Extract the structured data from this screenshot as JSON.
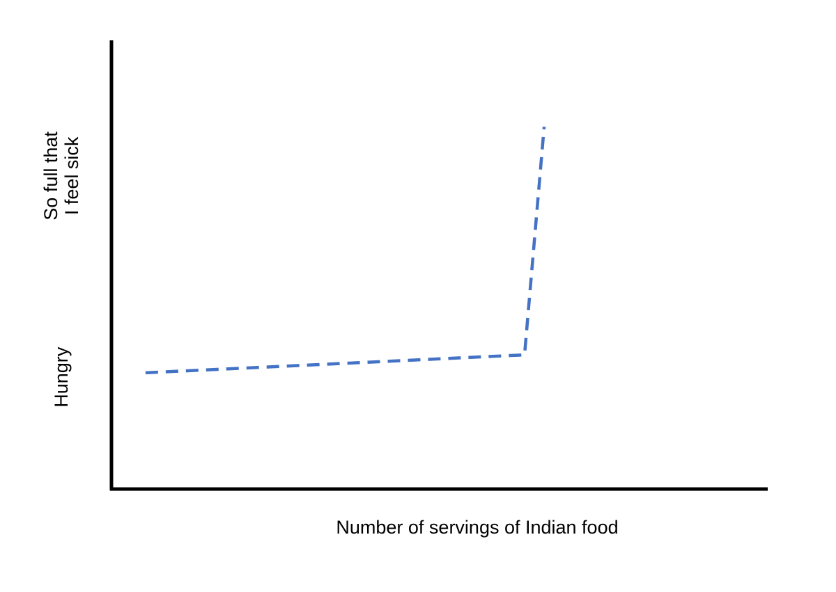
{
  "chart_data": {
    "type": "line",
    "xlabel": "Number of servings of Indian food",
    "x": [
      0.5,
      6.3,
      6.6
    ],
    "series": [
      {
        "color": "#4472c4",
        "values": [
          2.6,
          3.0,
          8.1
        ]
      }
    ],
    "xlim": [
      0,
      10
    ],
    "ylim": [
      0,
      10
    ],
    "yticks": [
      {
        "value": 2.5,
        "label": "Hungry"
      },
      {
        "value": 7,
        "label": "So full that I feel sick"
      }
    ],
    "grid": false,
    "dashed": true
  }
}
